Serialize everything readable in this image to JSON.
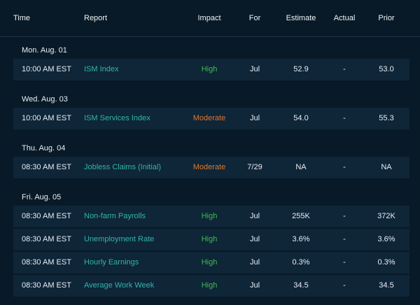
{
  "columns": {
    "time": "Time",
    "report": "Report",
    "impact": "Impact",
    "for": "For",
    "estimate": "Estimate",
    "actual": "Actual",
    "prior": "Prior"
  },
  "colors": {
    "background": "#081a27",
    "row": "#0f2538",
    "report_link": "#2fb7a8",
    "impact_high": "#3bbf4f",
    "impact_moderate": "#e0772b"
  },
  "days": [
    {
      "label": "Mon. Aug. 01",
      "rows": [
        {
          "time": "10:00 AM EST",
          "report": "ISM Index",
          "impact": "High",
          "for": "Jul",
          "estimate": "52.9",
          "actual": "-",
          "prior": "53.0"
        }
      ]
    },
    {
      "label": "Wed. Aug. 03",
      "rows": [
        {
          "time": "10:00 AM EST",
          "report": "ISM Services Index",
          "impact": "Moderate",
          "for": "Jul",
          "estimate": "54.0",
          "actual": "-",
          "prior": "55.3"
        }
      ]
    },
    {
      "label": "Thu. Aug. 04",
      "rows": [
        {
          "time": "08:30 AM EST",
          "report": "Jobless Claims (Initial)",
          "impact": "Moderate",
          "for": "7/29",
          "estimate": "NA",
          "actual": "-",
          "prior": "NA"
        }
      ]
    },
    {
      "label": "Fri. Aug. 05",
      "rows": [
        {
          "time": "08:30 AM EST",
          "report": "Non-farm Payrolls",
          "impact": "High",
          "for": "Jul",
          "estimate": "255K",
          "actual": "-",
          "prior": "372K"
        },
        {
          "time": "08:30 AM EST",
          "report": "Unemployment Rate",
          "impact": "High",
          "for": "Jul",
          "estimate": "3.6%",
          "actual": "-",
          "prior": "3.6%"
        },
        {
          "time": "08:30 AM EST",
          "report": "Hourly Earnings",
          "impact": "High",
          "for": "Jul",
          "estimate": "0.3%",
          "actual": "-",
          "prior": "0.3%"
        },
        {
          "time": "08:30 AM EST",
          "report": "Average Work Week",
          "impact": "High",
          "for": "Jul",
          "estimate": "34.5",
          "actual": "-",
          "prior": "34.5"
        }
      ]
    }
  ]
}
